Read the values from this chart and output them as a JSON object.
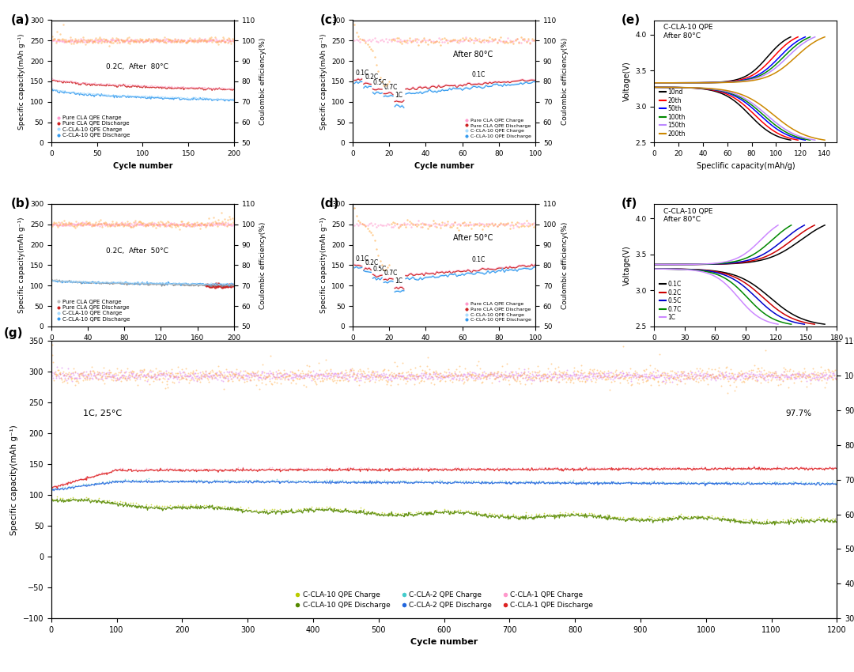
{
  "fig_width": 10.8,
  "fig_height": 8.5,
  "colors": {
    "pure_charge": "#ffaacc",
    "pure_discharge": "#cc2222",
    "ccla10_charge": "#aaddff",
    "ccla10_discharge": "#3399ee",
    "orange_ce": "#ffaa44",
    "pink_ce": "#ff99cc",
    "gray_charge": "#999999",
    "gray_discharge": "#555555"
  },
  "panel_e": {
    "legend_labels": [
      "10nd",
      "20th",
      "50th",
      "100th",
      "150th",
      "200th"
    ],
    "legend_colors": [
      "#000000",
      "#ff0000",
      "#0000ff",
      "#008800",
      "#bb88ff",
      "#cc8800"
    ]
  },
  "panel_f": {
    "legend_labels": [
      "0.1C",
      "0.2C",
      "0.5C",
      "0.7C",
      "1C"
    ],
    "legend_colors": [
      "#000000",
      "#cc0000",
      "#0000cc",
      "#008800",
      "#cc88ff"
    ]
  }
}
